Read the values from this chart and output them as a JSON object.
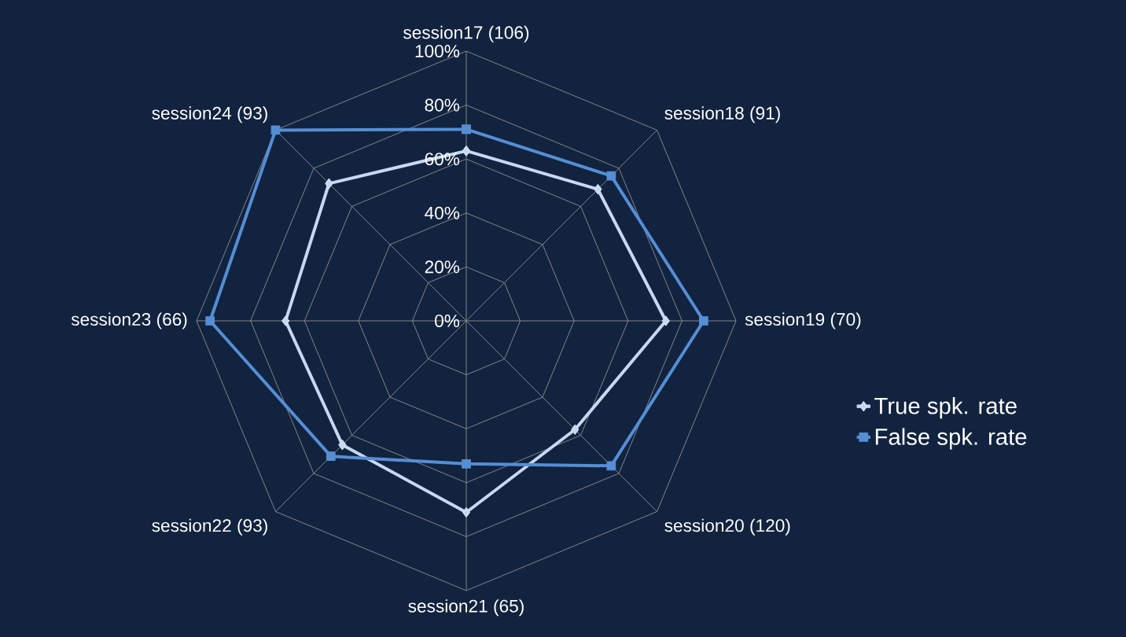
{
  "chart_data": {
    "type": "radar",
    "categories": [
      "session17 (106)",
      "session18 (91)",
      "session19 (70)",
      "session20 (120)",
      "session21 (65)",
      "session22 (93)",
      "session23 (66)",
      "session24 (93)"
    ],
    "series": [
      {
        "name": "True spk. rate",
        "color": "#c6d9f1",
        "marker": "diamond",
        "values": [
          63,
          69,
          74,
          57,
          71,
          65,
          67,
          72
        ]
      },
      {
        "name": "False spk. rate",
        "color": "#558ed5",
        "marker": "square",
        "values": [
          71,
          76,
          88,
          76,
          53,
          71,
          95,
          100
        ]
      }
    ],
    "ylim": [
      0,
      100
    ],
    "yticks": [
      {
        "value": 0,
        "label": "0%"
      },
      {
        "value": 20,
        "label": "20%"
      },
      {
        "value": 40,
        "label": "40%"
      },
      {
        "value": 60,
        "label": "60%"
      },
      {
        "value": 80,
        "label": "80%"
      },
      {
        "value": 100,
        "label": "100%"
      }
    ],
    "grid": true,
    "legend": "right"
  }
}
